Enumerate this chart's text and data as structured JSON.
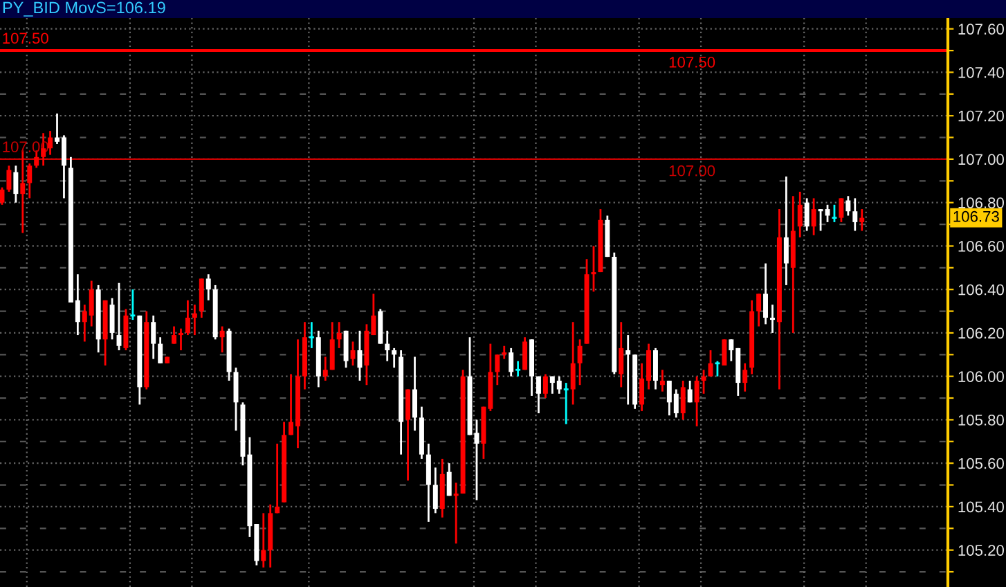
{
  "chart_data": {
    "type": "candlestick",
    "title": "PY_BID MovS=106.19",
    "categories": [
      null,
      null,
      null,
      null,
      null,
      null,
      null,
      null,
      null,
      null,
      null,
      null,
      null,
      null,
      null,
      null,
      null,
      null,
      null,
      null,
      null,
      null,
      null,
      null,
      null,
      null,
      null,
      null,
      null,
      null,
      null,
      null,
      null,
      null,
      null,
      null,
      null,
      null,
      null,
      null,
      null,
      null,
      null,
      null,
      null,
      null,
      null,
      null,
      null,
      null,
      null,
      null,
      null,
      null,
      null,
      null,
      null,
      null,
      null,
      null,
      null,
      null,
      null,
      null,
      null,
      null,
      null,
      null,
      null,
      null,
      null,
      null,
      null,
      null,
      null,
      null,
      null,
      null,
      null,
      null,
      null,
      null,
      null,
      null,
      null,
      null,
      null,
      null,
      null,
      null,
      null,
      null,
      null,
      null,
      null,
      null,
      null,
      null,
      null,
      null,
      null,
      null,
      null,
      null,
      null,
      null,
      null,
      null,
      null,
      null,
      null,
      null,
      null,
      null,
      null,
      null,
      null,
      null,
      null,
      null,
      null,
      null,
      null,
      null,
      null,
      null,
      null,
      null,
      null,
      null,
      null,
      null,
      null,
      null,
      null,
      null,
      null,
      null
    ],
    "ohlc": [
      [
        106.8,
        106.87,
        106.79,
        106.86
      ],
      [
        106.86,
        106.97,
        106.85,
        106.95
      ],
      [
        106.94,
        106.97,
        106.8,
        106.84
      ],
      [
        106.84,
        107.04,
        106.66,
        106.89
      ],
      [
        106.89,
        106.98,
        106.82,
        106.97
      ],
      [
        106.97,
        107.04,
        106.96,
        107.01
      ],
      [
        107.01,
        107.12,
        106.97,
        107.05
      ],
      [
        107.05,
        107.13,
        107.02,
        107.1
      ],
      [
        107.1,
        107.21,
        107.07,
        107.08
      ],
      [
        107.1,
        107.11,
        106.82,
        106.97
      ],
      [
        106.96,
        107.01,
        106.34,
        106.34
      ],
      [
        106.35,
        106.47,
        106.19,
        106.25
      ],
      [
        106.25,
        106.33,
        106.16,
        106.3
      ],
      [
        106.28,
        106.44,
        106.23,
        106.4
      ],
      [
        106.4,
        106.42,
        106.11,
        106.17
      ],
      [
        106.17,
        106.35,
        106.05,
        106.35
      ],
      [
        106.33,
        106.36,
        106.17,
        106.2
      ],
      [
        106.19,
        106.43,
        106.12,
        106.14
      ],
      [
        106.13,
        106.31,
        106.12,
        106.28
      ],
      [
        106.28,
        106.4,
        106.26,
        106.28
      ],
      [
        106.28,
        106.28,
        105.87,
        105.95
      ],
      [
        105.95,
        106.3,
        105.94,
        106.25
      ],
      [
        106.25,
        106.28,
        106.08,
        106.15
      ],
      [
        106.15,
        106.18,
        106.06,
        106.06
      ],
      [
        106.06,
        106.09,
        106.06,
        106.09
      ],
      [
        106.15,
        106.23,
        106.15,
        106.19
      ],
      [
        106.19,
        106.22,
        106.12,
        106.2
      ],
      [
        106.2,
        106.35,
        106.19,
        106.27
      ],
      [
        106.27,
        106.33,
        106.19,
        106.29
      ],
      [
        106.3,
        106.45,
        106.27,
        106.45
      ],
      [
        106.45,
        106.47,
        106.35,
        106.4
      ],
      [
        106.4,
        106.42,
        106.17,
        106.18
      ],
      [
        106.18,
        106.23,
        106.11,
        106.21
      ],
      [
        106.21,
        106.22,
        105.98,
        106.02
      ],
      [
        106.02,
        106.04,
        105.75,
        105.88
      ],
      [
        105.87,
        105.88,
        105.59,
        105.63
      ],
      [
        105.64,
        105.72,
        105.26,
        105.31
      ],
      [
        105.32,
        105.32,
        105.13,
        105.15
      ],
      [
        105.15,
        105.37,
        105.12,
        105.2
      ],
      [
        105.2,
        105.41,
        105.12,
        105.37
      ],
      [
        105.37,
        105.69,
        105.37,
        105.4
      ],
      [
        105.42,
        105.79,
        105.42,
        105.73
      ],
      [
        105.73,
        106.01,
        105.73,
        105.79
      ],
      [
        105.77,
        106.17,
        105.67,
        106.0
      ],
      [
        106.0,
        106.25,
        105.94,
        106.18
      ],
      [
        106.18,
        106.25,
        106.13,
        106.18
      ],
      [
        106.18,
        106.21,
        105.95,
        106.0
      ],
      [
        106.0,
        106.09,
        105.98,
        106.03
      ],
      [
        106.03,
        106.25,
        106.03,
        106.17
      ],
      [
        106.17,
        106.25,
        106.13,
        106.2
      ],
      [
        106.21,
        106.21,
        106.04,
        106.07
      ],
      [
        106.08,
        106.16,
        106.05,
        106.12
      ],
      [
        106.12,
        106.21,
        105.98,
        106.04
      ],
      [
        106.05,
        106.24,
        105.96,
        106.21
      ],
      [
        106.19,
        106.38,
        106.19,
        106.28
      ],
      [
        106.3,
        106.31,
        106.15,
        106.15
      ],
      [
        106.15,
        106.21,
        106.07,
        106.12
      ],
      [
        106.12,
        106.13,
        106.04,
        106.1
      ],
      [
        106.09,
        106.12,
        105.64,
        105.79
      ],
      [
        105.8,
        105.94,
        105.52,
        105.94
      ],
      [
        105.94,
        106.09,
        105.75,
        105.81
      ],
      [
        105.81,
        105.86,
        105.62,
        105.64
      ],
      [
        105.64,
        105.69,
        105.33,
        105.5
      ],
      [
        105.5,
        105.58,
        105.37,
        105.39
      ],
      [
        105.39,
        105.62,
        105.35,
        105.55
      ],
      [
        105.56,
        105.6,
        105.45,
        105.45
      ],
      [
        105.45,
        105.51,
        105.23,
        105.46
      ],
      [
        105.46,
        106.03,
        105.46,
        106.0
      ],
      [
        106.0,
        106.18,
        105.73,
        105.73
      ],
      [
        105.74,
        105.8,
        105.43,
        105.69
      ],
      [
        105.69,
        105.86,
        105.62,
        105.86
      ],
      [
        105.85,
        106.15,
        105.84,
        106.02
      ],
      [
        106.02,
        106.1,
        105.96,
        106.1
      ],
      [
        106.1,
        106.14,
        106.08,
        106.11
      ],
      [
        106.11,
        106.13,
        106.0,
        106.02
      ],
      [
        106.03,
        106.07,
        106.0,
        106.03
      ],
      [
        106.03,
        106.18,
        106.03,
        106.16
      ],
      [
        106.17,
        106.17,
        105.91,
        106.0
      ],
      [
        106.0,
        106.0,
        105.83,
        105.92
      ],
      [
        105.92,
        106.01,
        105.9,
        106.0
      ],
      [
        106.0,
        106.0,
        105.92,
        105.97
      ],
      [
        105.98,
        106.0,
        105.92,
        105.94
      ],
      [
        105.94,
        105.97,
        105.78,
        105.94
      ],
      [
        105.94,
        106.25,
        105.87,
        106.06
      ],
      [
        106.06,
        106.17,
        105.96,
        106.14
      ],
      [
        106.15,
        106.54,
        106.15,
        106.47
      ],
      [
        106.47,
        106.6,
        106.39,
        106.48
      ],
      [
        106.48,
        106.77,
        106.48,
        106.72
      ],
      [
        106.72,
        106.74,
        106.55,
        106.55
      ],
      [
        106.55,
        106.57,
        106.01,
        106.02
      ],
      [
        106.01,
        106.25,
        105.95,
        106.13
      ],
      [
        106.12,
        106.19,
        105.87,
        106.1
      ],
      [
        106.1,
        106.1,
        105.85,
        105.87
      ],
      [
        105.87,
        106.06,
        105.84,
        105.99
      ],
      [
        105.98,
        106.15,
        105.94,
        106.12
      ],
      [
        106.12,
        106.13,
        105.94,
        105.98
      ],
      [
        105.96,
        106.03,
        105.93,
        105.98
      ],
      [
        105.98,
        105.98,
        105.82,
        105.88
      ],
      [
        105.92,
        105.94,
        105.81,
        105.83
      ],
      [
        105.83,
        105.98,
        105.8,
        105.95
      ],
      [
        105.94,
        105.98,
        105.88,
        105.88
      ],
      [
        105.88,
        106.0,
        105.77,
        105.98
      ],
      [
        105.98,
        106.03,
        105.92,
        106.0
      ],
      [
        106.0,
        106.12,
        106.0,
        106.06
      ],
      [
        106.06,
        106.07,
        106.0,
        106.06
      ],
      [
        106.05,
        106.17,
        106.05,
        106.17
      ],
      [
        106.17,
        106.17,
        106.07,
        106.12
      ],
      [
        106.13,
        106.13,
        105.91,
        105.97
      ],
      [
        105.97,
        106.06,
        105.93,
        106.03
      ],
      [
        106.04,
        106.35,
        106.01,
        106.3
      ],
      [
        106.3,
        106.38,
        106.23,
        106.38
      ],
      [
        106.38,
        106.52,
        106.24,
        106.27
      ],
      [
        106.27,
        106.33,
        106.2,
        106.26
      ],
      [
        106.25,
        106.77,
        105.94,
        106.64
      ],
      [
        106.64,
        106.92,
        106.42,
        106.52
      ],
      [
        106.5,
        106.83,
        106.2,
        106.67
      ],
      [
        106.69,
        106.85,
        106.64,
        106.79
      ],
      [
        106.8,
        106.82,
        106.67,
        106.69
      ],
      [
        106.69,
        106.82,
        106.65,
        106.77
      ],
      [
        106.77,
        106.77,
        106.67,
        106.76
      ],
      [
        106.77,
        106.79,
        106.71,
        106.74
      ],
      [
        106.73,
        106.79,
        106.71,
        106.73
      ],
      [
        106.73,
        106.82,
        106.71,
        106.82
      ],
      [
        106.81,
        106.83,
        106.74,
        106.76
      ],
      [
        106.76,
        106.82,
        106.67,
        106.71
      ],
      [
        106.71,
        106.77,
        106.67,
        106.73
      ],
      null,
      null,
      null,
      null,
      null,
      null,
      null,
      null,
      null,
      null,
      null,
      null
    ],
    "colors": [
      "#ff0000",
      "#ff0000",
      "#ffffff",
      "#ff0000",
      "#ff0000",
      "#ff0000",
      "#ff0000",
      "#ff0000",
      "#ffffff",
      "#ffffff",
      "#ffffff",
      "#ffffff",
      "#ff0000",
      "#ff0000",
      "#ffffff",
      "#ff0000",
      "#ffffff",
      "#ffffff",
      "#ff0000",
      "#00ffff",
      "#ffffff",
      "#ff0000",
      "#ffffff",
      "#ffffff",
      "#ff0000",
      "#ff0000",
      "#ff0000",
      "#ff0000",
      "#ff0000",
      "#ff0000",
      "#ffffff",
      "#ffffff",
      "#ff0000",
      "#ffffff",
      "#ffffff",
      "#ffffff",
      "#ffffff",
      "#ffffff",
      "#ff0000",
      "#ff0000",
      "#ff0000",
      "#ff0000",
      "#ff0000",
      "#ff0000",
      "#ff0000",
      "#00ffff",
      "#ffffff",
      "#ff0000",
      "#ff0000",
      "#ff0000",
      "#ffffff",
      "#ff0000",
      "#ffffff",
      "#ff0000",
      "#ff0000",
      "#ffffff",
      "#ffffff",
      "#ffffff",
      "#ffffff",
      "#ff0000",
      "#ffffff",
      "#ffffff",
      "#ffffff",
      "#ffffff",
      "#ff0000",
      "#ffffff",
      "#ff0000",
      "#ff0000",
      "#ffffff",
      "#ffffff",
      "#ff0000",
      "#ff0000",
      "#ff0000",
      "#ff0000",
      "#ffffff",
      "#00ffff",
      "#ff0000",
      "#ffffff",
      "#ffffff",
      "#ff0000",
      "#ffffff",
      "#ffffff",
      "#00ffff",
      "#ff0000",
      "#ff0000",
      "#ff0000",
      "#ff0000",
      "#ff0000",
      "#ffffff",
      "#ffffff",
      "#ff0000",
      "#ffffff",
      "#ffffff",
      "#ff0000",
      "#ff0000",
      "#ffffff",
      "#ff0000",
      "#ffffff",
      "#ffffff",
      "#ff0000",
      "#ffffff",
      "#ff0000",
      "#ff0000",
      "#ff0000",
      "#00ffff",
      "#ff0000",
      "#ffffff",
      "#ffffff",
      "#ff0000",
      "#ff0000",
      "#ff0000",
      "#ffffff",
      "#ffffff",
      "#ff0000",
      "#ffffff",
      "#ff0000",
      "#ff0000",
      "#ffffff",
      "#ff0000",
      "#ffffff",
      "#ffffff",
      "#00ffff",
      "#ff0000",
      "#ffffff",
      "#ffffff",
      "#ff0000",
      null,
      null,
      null,
      null,
      null,
      null,
      null,
      null,
      null,
      null,
      null,
      null
    ],
    "ylim": [
      105.03,
      107.65
    ],
    "yticks": [
      {
        "value": 105.1,
        "label": null
      },
      {
        "value": 105.2,
        "label": "105.20"
      },
      {
        "value": 105.3,
        "label": null
      },
      {
        "value": 105.4,
        "label": "105.40"
      },
      {
        "value": 105.5,
        "label": null
      },
      {
        "value": 105.6,
        "label": "105.60"
      },
      {
        "value": 105.7,
        "label": null
      },
      {
        "value": 105.8,
        "label": "105.80"
      },
      {
        "value": 105.9,
        "label": null
      },
      {
        "value": 106.0,
        "label": "106.00"
      },
      {
        "value": 106.1,
        "label": null
      },
      {
        "value": 106.2,
        "label": "106.20"
      },
      {
        "value": 106.3,
        "label": null
      },
      {
        "value": 106.4,
        "label": "106.40"
      },
      {
        "value": 106.5,
        "label": null
      },
      {
        "value": 106.6,
        "label": "106.60"
      },
      {
        "value": 106.7,
        "label": null
      },
      {
        "value": 106.8,
        "label": "106.80"
      },
      {
        "value": 106.9,
        "label": null
      },
      {
        "value": 107.0,
        "label": "107.00"
      },
      {
        "value": 107.1,
        "label": null
      },
      {
        "value": 107.2,
        "label": "107.20"
      },
      {
        "value": 107.3,
        "label": null
      },
      {
        "value": 107.4,
        "label": "107.40"
      },
      {
        "value": 107.5,
        "label": null
      },
      {
        "value": 107.6,
        "label": "107.60"
      }
    ],
    "ref_lines": [
      {
        "axis": "y",
        "value": 107.5,
        "label": "107.50",
        "color": "#ff0000"
      },
      {
        "axis": "y",
        "value": 107.0,
        "label": "107.00",
        "color": "#cc0000"
      }
    ],
    "annotations": [
      {
        "text": "106.73",
        "y": 106.73
      }
    ],
    "grid": true,
    "tick_labels": "y"
  }
}
